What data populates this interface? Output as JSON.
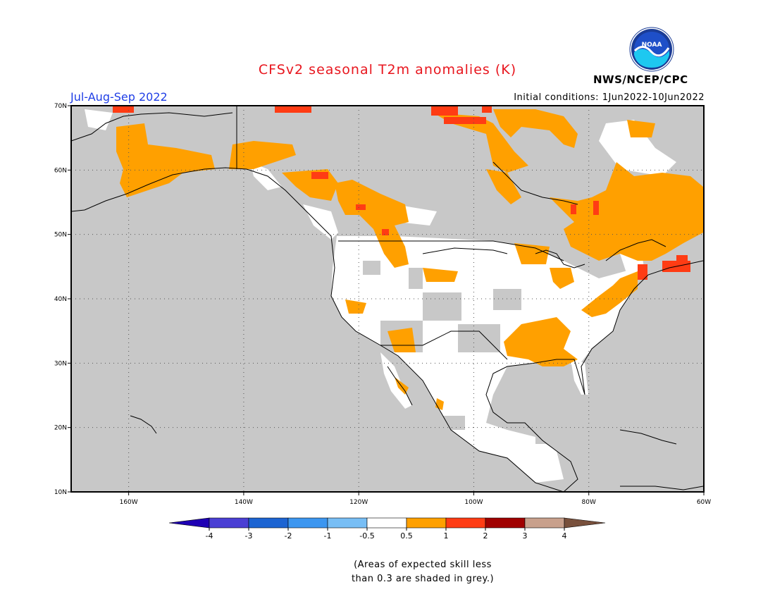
{
  "header": {
    "title": "CFSv2 seasonal T2m anomalies (K)",
    "season": "Jul-Aug-Sep 2022",
    "initial_conditions": "Initial conditions: 1Jun2022-10Jun2022",
    "agency": "NWS/NCEP/CPC",
    "logo_text": "NOAA"
  },
  "map": {
    "projection": "lat-lon",
    "lon_range": [
      -170,
      -60
    ],
    "lat_range": [
      10,
      70
    ],
    "lon_ticks": [
      {
        "value": -160,
        "label": "160W"
      },
      {
        "value": -140,
        "label": "140W"
      },
      {
        "value": -120,
        "label": "120W"
      },
      {
        "value": -100,
        "label": "100W"
      },
      {
        "value": -80,
        "label": "80W"
      },
      {
        "value": -60,
        "label": "60W"
      }
    ],
    "lat_ticks": [
      {
        "value": 10,
        "label": "10N"
      },
      {
        "value": 20,
        "label": "20N"
      },
      {
        "value": 30,
        "label": "30N"
      },
      {
        "value": 40,
        "label": "40N"
      },
      {
        "value": 50,
        "label": "50N"
      },
      {
        "value": 60,
        "label": "60N"
      },
      {
        "value": 70,
        "label": "70N"
      }
    ],
    "colors": {
      "grey": "#c8c8c8",
      "white": "#ffffff",
      "orange": "#ffa000",
      "red": "#ff3c14"
    }
  },
  "colorbar": {
    "labels": [
      "-4",
      "-3",
      "-2",
      "-1",
      "-0.5",
      "0.5",
      "1",
      "2",
      "3",
      "4"
    ],
    "colors": [
      "#1e00b4",
      "#4a3fd4",
      "#1c64d2",
      "#3c96f0",
      "#78bef5",
      "#ffffff",
      "#ffa000",
      "#ff3c14",
      "#a00000",
      "#c8a08c",
      "#78503c"
    ]
  },
  "footnote": {
    "line1": "(Areas of expected skill less",
    "line2": "than 0.3 are shaded in grey.)"
  }
}
